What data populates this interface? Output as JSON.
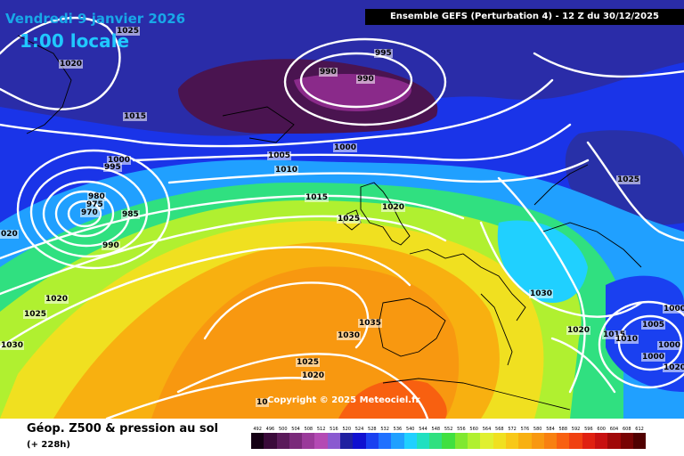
{
  "header": {
    "date": "Vendredi 9 janvier 2026",
    "local_time": "1:00 locale",
    "run_info": "Ensemble GEFS  (Perturbation 4)  -  12 Z du 30/12/2025"
  },
  "copyright": "Copyright © 2025 Meteociel.fr",
  "footer": {
    "title": "Géop. Z500 & pression au sol",
    "lead": "(+ 228h)"
  },
  "isobars": [
    {
      "text": "1025"
    },
    {
      "text": "1020"
    },
    {
      "text": "1015"
    },
    {
      "text": "1000"
    },
    {
      "text": "995"
    },
    {
      "text": "980"
    },
    {
      "text": "975"
    },
    {
      "text": "970"
    },
    {
      "text": "985"
    },
    {
      "text": "990"
    },
    {
      "text": "020"
    },
    {
      "text": "1020"
    },
    {
      "text": "1025"
    },
    {
      "text": "1030"
    },
    {
      "text": "990"
    },
    {
      "text": "995"
    },
    {
      "text": "990"
    },
    {
      "text": "1000"
    },
    {
      "text": "1005"
    },
    {
      "text": "1010"
    },
    {
      "text": "1015"
    },
    {
      "text": "1025"
    },
    {
      "text": "1020"
    },
    {
      "text": "1035"
    },
    {
      "text": "1030"
    },
    {
      "text": "1025"
    },
    {
      "text": "1020"
    },
    {
      "text": "10"
    },
    {
      "text": "1025"
    },
    {
      "text": "1030"
    },
    {
      "text": "1020"
    },
    {
      "text": "1015"
    },
    {
      "text": "1010"
    },
    {
      "text": "1005"
    },
    {
      "text": "1000"
    },
    {
      "text": "1000"
    },
    {
      "text": "1000"
    },
    {
      "text": "1020"
    }
  ],
  "scale": [
    {
      "label": "492",
      "color": "#140014"
    },
    {
      "label": "496",
      "color": "#3a0a3a"
    },
    {
      "label": "500",
      "color": "#5a1a5a"
    },
    {
      "label": "504",
      "color": "#7a2a7a"
    },
    {
      "label": "508",
      "color": "#9a3a9a"
    },
    {
      "label": "512",
      "color": "#b44ab4"
    },
    {
      "label": "516",
      "color": "#8a5ad0"
    },
    {
      "label": "520",
      "color": "#2020a0"
    },
    {
      "label": "524",
      "color": "#1010d0"
    },
    {
      "label": "528",
      "color": "#1a40f0"
    },
    {
      "label": "532",
      "color": "#2070ff"
    },
    {
      "label": "536",
      "color": "#20a0ff"
    },
    {
      "label": "540",
      "color": "#20d0ff"
    },
    {
      "label": "544",
      "color": "#20e0c0"
    },
    {
      "label": "548",
      "color": "#30e080"
    },
    {
      "label": "552",
      "color": "#40e040"
    },
    {
      "label": "556",
      "color": "#80e830"
    },
    {
      "label": "560",
      "color": "#b0f030"
    },
    {
      "label": "564",
      "color": "#e0f030"
    },
    {
      "label": "568",
      "color": "#f0e020"
    },
    {
      "label": "572",
      "color": "#f8c818"
    },
    {
      "label": "576",
      "color": "#f8b010"
    },
    {
      "label": "580",
      "color": "#f89810"
    },
    {
      "label": "584",
      "color": "#f88010"
    },
    {
      "label": "588",
      "color": "#f86010"
    },
    {
      "label": "592",
      "color": "#f04010"
    },
    {
      "label": "596",
      "color": "#e02010"
    },
    {
      "label": "600",
      "color": "#c81010"
    },
    {
      "label": "604",
      "color": "#a00808"
    },
    {
      "label": "608",
      "color": "#780404"
    },
    {
      "label": "612",
      "color": "#500000"
    }
  ]
}
